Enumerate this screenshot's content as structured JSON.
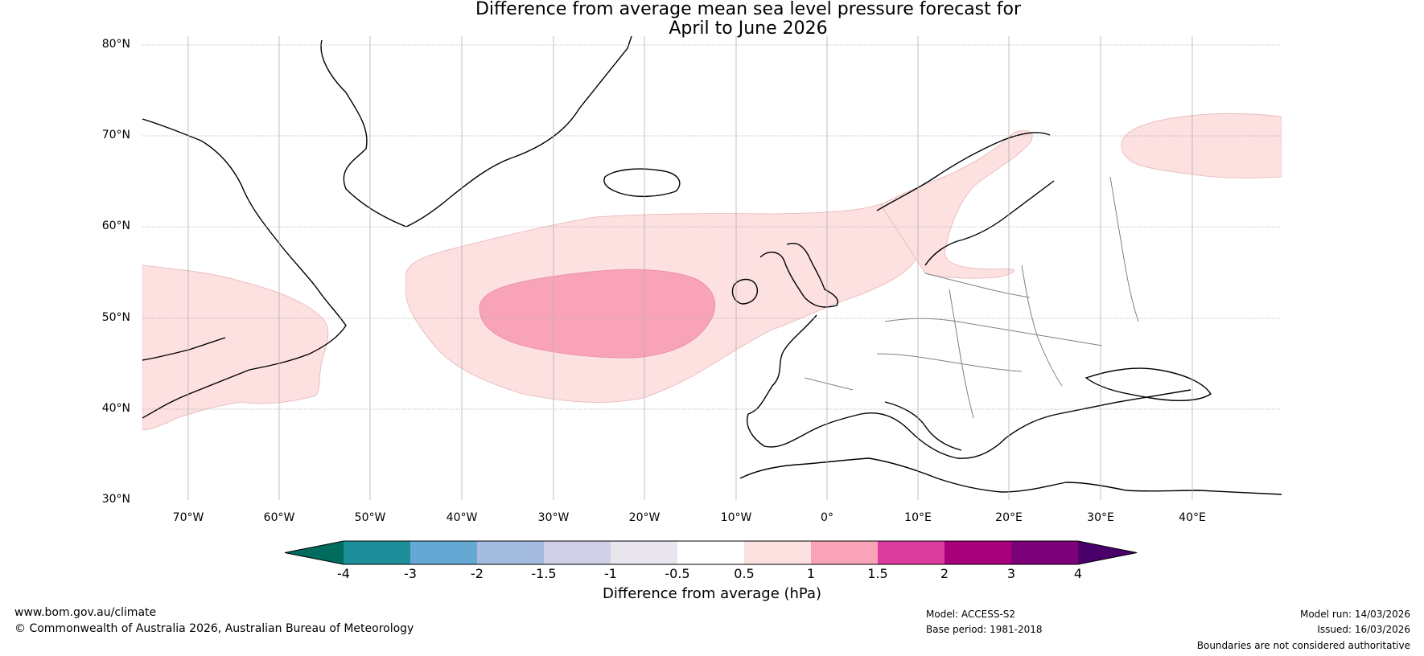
{
  "title": {
    "line1": "Difference from average mean sea level pressure forecast for",
    "line2": "April to June 2026"
  },
  "map": {
    "lat_labels": [
      "80°N",
      "70°N",
      "60°N",
      "50°N",
      "40°N",
      "30°N"
    ],
    "lon_labels": [
      "70°W",
      "60°W",
      "50°W",
      "40°W",
      "30°W",
      "20°W",
      "10°W",
      "0°",
      "10°E",
      "20°E",
      "30°E",
      "40°E"
    ],
    "anomaly_regions": [
      {
        "name": "north-atlantic-positive",
        "level": "0.5-1 hPa"
      },
      {
        "name": "north-atlantic-core",
        "level": "1-1.5 hPa"
      },
      {
        "name": "eastern-canada-positive",
        "level": "0.5-1 hPa"
      },
      {
        "name": "scandinavia-positive",
        "level": "0.5-1 hPa"
      },
      {
        "name": "barents-positive",
        "level": "0.5-1 hPa"
      }
    ]
  },
  "colorbar": {
    "labels": [
      "-4",
      "-3",
      "-2",
      "-1.5",
      "-1",
      "-0.5",
      "0.5",
      "1",
      "1.5",
      "2",
      "3",
      "4"
    ],
    "colors": [
      "#006c5e",
      "#1c8f9a",
      "#64a8d3",
      "#a3bcdf",
      "#cfcfe8",
      "#e8e6ec",
      "#ffffff",
      "#fde0e0",
      "#f9a3b8",
      "#dc3c9e",
      "#a8007a",
      "#7c0078",
      "#4a006a"
    ],
    "title": "Difference from average (hPa)"
  },
  "footer": {
    "url": "www.bom.gov.au/climate",
    "copyright": "© Commonwealth of Australia 2026, Australian Bureau of Meteorology",
    "model": "Model: ACCESS-S2",
    "base_period": "Base period: 1981-2018",
    "model_run": "Model run: 14/03/2026",
    "issued": "Issued: 16/03/2026",
    "disclaimer": "Boundaries are not considered authoritative"
  }
}
